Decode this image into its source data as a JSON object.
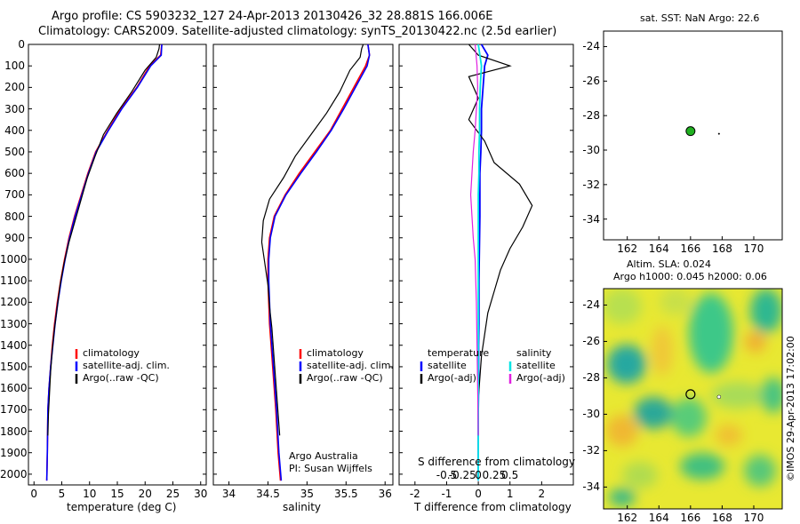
{
  "header": {
    "title_line1": "Argo profile: CS 5903232_127 24-Apr-2013 20130426_32 28.881S 166.006E",
    "title_line2": "Climatology: CARS2009. Satellite-adjusted climatology: synTS_20130422.nc (2.5d earlier)"
  },
  "colors": {
    "climatology": "#ff0000",
    "satellite": "#0000ff",
    "argo": "#000000",
    "salinity_satellite": "#00e5e5",
    "salinity_argo": "#e020e0",
    "marker": "#20b020"
  },
  "depth_ticks": [
    0,
    100,
    200,
    300,
    400,
    500,
    600,
    700,
    800,
    900,
    1000,
    1100,
    1200,
    1300,
    1400,
    1500,
    1600,
    1700,
    1800,
    1900,
    2000
  ],
  "panels": {
    "temperature": {
      "xlabel": "temperature (deg C)",
      "xticks": [
        0,
        5,
        10,
        15,
        20,
        25,
        30
      ],
      "legend": [
        "climatology",
        "satellite-adj. clim.",
        "Argo(..raw -QC)"
      ]
    },
    "salinity": {
      "xlabel": "salinity",
      "xticks": [
        "34",
        "34.5",
        "35",
        "35.5",
        "36"
      ],
      "legend": [
        "climatology",
        "satellite-adj. clim.",
        "Argo(..raw -QC)"
      ],
      "credit_line1": "Argo Australia",
      "credit_line2": "PI: Susan Wijffels"
    },
    "difference": {
      "xlabel": "T difference from climatology",
      "top_label": "S difference from climatology",
      "t_ticks": [
        "-2",
        "-1",
        "0",
        "1",
        "2"
      ],
      "s_ticks": [
        "-0.5",
        "-0.25",
        "0",
        "0.25",
        "0.5"
      ],
      "legend_temp_title": "temperature",
      "legend_sal_title": "salinity",
      "legend_satellite": "satellite",
      "legend_argo": "Argo(-adj)"
    },
    "sst_map": {
      "title": "sat. SST: NaN Argo: 22.6",
      "yticks": [
        "-24",
        "-26",
        "-28",
        "-30",
        "-32",
        "-34"
      ],
      "xticks": [
        "162",
        "164",
        "166",
        "168",
        "170"
      ]
    },
    "sla_map": {
      "title_line1": "Altim. SLA: 0.024",
      "title_line2": "Argo h1000: 0.045 h2000: 0.06",
      "yticks": [
        "-24",
        "-26",
        "-28",
        "-30",
        "-32",
        "-34"
      ],
      "xticks": [
        "162",
        "164",
        "166",
        "168",
        "170"
      ],
      "side_label": "©IMOS 29-Apr-2013 17:02:00"
    }
  },
  "chart_data": [
    {
      "type": "line",
      "title": "",
      "xlabel": "temperature (deg C)",
      "ylabel": "",
      "xlim": [
        -1,
        31
      ],
      "ylim": [
        2050,
        0
      ],
      "series": [
        {
          "name": "climatology",
          "x": [
            23.0,
            22.8,
            20.8,
            18.5,
            15.6,
            13.3,
            11.1,
            9.7,
            8.5,
            7.3,
            6.3,
            5.5,
            4.8,
            4.2,
            3.7,
            3.3,
            3.0,
            2.7,
            2.5,
            2.4,
            2.3
          ],
          "y": [
            0,
            50,
            100,
            200,
            300,
            400,
            500,
            600,
            700,
            800,
            900,
            1000,
            1100,
            1200,
            1300,
            1400,
            1500,
            1600,
            1700,
            1900,
            2030
          ]
        },
        {
          "name": "satellite-adj. clim.",
          "x": [
            23.0,
            22.9,
            21.0,
            18.6,
            15.8,
            13.4,
            11.2,
            9.8,
            8.6,
            7.4,
            6.4,
            5.6,
            4.9,
            4.3,
            3.8,
            3.4,
            3.0,
            2.7,
            2.5,
            2.4,
            2.3
          ],
          "y": [
            0,
            50,
            100,
            200,
            300,
            400,
            500,
            600,
            700,
            800,
            900,
            1000,
            1100,
            1200,
            1300,
            1400,
            1500,
            1600,
            1700,
            1900,
            2030
          ]
        },
        {
          "name": "Argo(..raw -QC)",
          "x": [
            22.6,
            22.5,
            22.0,
            20.0,
            17.6,
            14.9,
            12.5,
            11.0,
            9.6,
            8.5,
            7.4,
            6.3,
            5.4,
            4.7,
            4.2,
            3.7,
            3.3,
            3.0,
            2.8,
            2.6,
            2.5
          ],
          "y": [
            0,
            20,
            60,
            120,
            220,
            320,
            420,
            520,
            620,
            720,
            820,
            920,
            1020,
            1120,
            1220,
            1320,
            1420,
            1520,
            1620,
            1720,
            1820
          ]
        }
      ]
    },
    {
      "type": "line",
      "title": "",
      "xlabel": "salinity",
      "ylabel": "",
      "xlim": [
        33.8,
        36.1
      ],
      "ylim": [
        2050,
        0
      ],
      "series": [
        {
          "name": "climatology",
          "x": [
            35.78,
            35.8,
            35.75,
            35.6,
            35.45,
            35.3,
            35.1,
            34.9,
            34.72,
            34.58,
            34.52,
            34.5,
            34.5,
            34.51,
            34.52,
            34.54,
            34.56,
            34.58,
            34.6,
            34.63,
            34.66
          ],
          "y": [
            0,
            50,
            100,
            200,
            300,
            400,
            500,
            600,
            700,
            800,
            900,
            1000,
            1100,
            1200,
            1300,
            1400,
            1500,
            1600,
            1700,
            1900,
            2030
          ]
        },
        {
          "name": "satellite-adj. clim.",
          "x": [
            35.78,
            35.8,
            35.77,
            35.62,
            35.47,
            35.31,
            35.12,
            34.92,
            34.73,
            34.59,
            34.53,
            34.51,
            34.51,
            34.52,
            34.53,
            34.55,
            34.57,
            34.59,
            34.61,
            34.64,
            34.67
          ],
          "y": [
            0,
            50,
            100,
            200,
            300,
            400,
            500,
            600,
            700,
            800,
            900,
            1000,
            1100,
            1200,
            1300,
            1400,
            1500,
            1600,
            1700,
            1900,
            2030
          ]
        },
        {
          "name": "Argo(..raw -QC)",
          "x": [
            35.72,
            35.7,
            35.68,
            35.55,
            35.42,
            35.25,
            35.05,
            34.85,
            34.7,
            34.52,
            34.44,
            34.42,
            34.46,
            34.5,
            34.52,
            34.55,
            34.57,
            34.59,
            34.61,
            34.63,
            34.65
          ],
          "y": [
            0,
            20,
            60,
            120,
            220,
            320,
            420,
            520,
            620,
            720,
            820,
            920,
            1020,
            1120,
            1220,
            1320,
            1420,
            1520,
            1620,
            1720,
            1820
          ]
        }
      ]
    },
    {
      "type": "line",
      "title": "",
      "xlabel": "T difference from climatology",
      "ylabel": "",
      "xlim": [
        -2.5,
        3.0
      ],
      "ylim": [
        2050,
        0
      ],
      "series": [
        {
          "name": "temperature satellite",
          "x": [
            0.1,
            0.3,
            0.2,
            0.15,
            0.1,
            0.1,
            0.08,
            0.05,
            0.05,
            0.05,
            0.04,
            0.03,
            0.02,
            0.02,
            0.02,
            0.01,
            0.01,
            0.01,
            0.0,
            0.0,
            0.0
          ],
          "y": [
            0,
            50,
            100,
            200,
            300,
            400,
            500,
            600,
            700,
            800,
            900,
            1000,
            1100,
            1200,
            1300,
            1400,
            1500,
            1600,
            1700,
            1900,
            2030
          ]
        },
        {
          "name": "temperature Argo(-adj)",
          "x": [
            -0.3,
            0.0,
            1.0,
            -0.3,
            0.0,
            -0.3,
            0.2,
            0.5,
            1.3,
            1.7,
            1.4,
            1.0,
            0.7,
            0.5,
            0.3,
            0.2,
            0.1,
            0.05,
            0.0,
            0.0
          ],
          "y": [
            0,
            50,
            100,
            150,
            250,
            350,
            450,
            550,
            650,
            750,
            850,
            950,
            1050,
            1150,
            1250,
            1350,
            1450,
            1550,
            1650,
            1820
          ]
        },
        {
          "name": "salinity satellite",
          "x": [
            0.0,
            0.05,
            0.03,
            0.02,
            0.02,
            0.01,
            0.01,
            0.0,
            0.0,
            0.0,
            0.0,
            0.0,
            0.0,
            0.0,
            0.0
          ],
          "y": [
            0,
            100,
            200,
            300,
            400,
            500,
            600,
            700,
            800,
            900,
            1000,
            1200,
            1400,
            1600,
            2030
          ]
        },
        {
          "name": "salinity Argo(-adj)",
          "x": [
            -0.05,
            -0.02,
            -0.01,
            -0.03,
            -0.05,
            -0.08,
            -0.1,
            -0.12,
            -0.1,
            -0.08,
            -0.05,
            -0.03,
            -0.02,
            -0.01,
            0.0
          ],
          "y": [
            0,
            100,
            200,
            300,
            400,
            500,
            600,
            700,
            800,
            900,
            1000,
            1200,
            1400,
            1600,
            1820
          ]
        }
      ]
    },
    {
      "type": "scatter",
      "title": "sat. SST: NaN Argo: 22.6",
      "xlim": [
        160.5,
        171.8
      ],
      "ylim": [
        -35.2,
        -23.1
      ],
      "series": [
        {
          "name": "",
          "x": [
            166.0
          ],
          "y": [
            -28.9
          ]
        }
      ]
    },
    {
      "type": "heatmap",
      "title": "Altim. SLA: 0.024",
      "xlim": [
        160.5,
        171.8
      ],
      "ylim": [
        -35.2,
        -23.1
      ],
      "series": [
        {
          "name": "",
          "x": [
            166.0
          ],
          "y": [
            -28.9
          ]
        }
      ]
    }
  ]
}
